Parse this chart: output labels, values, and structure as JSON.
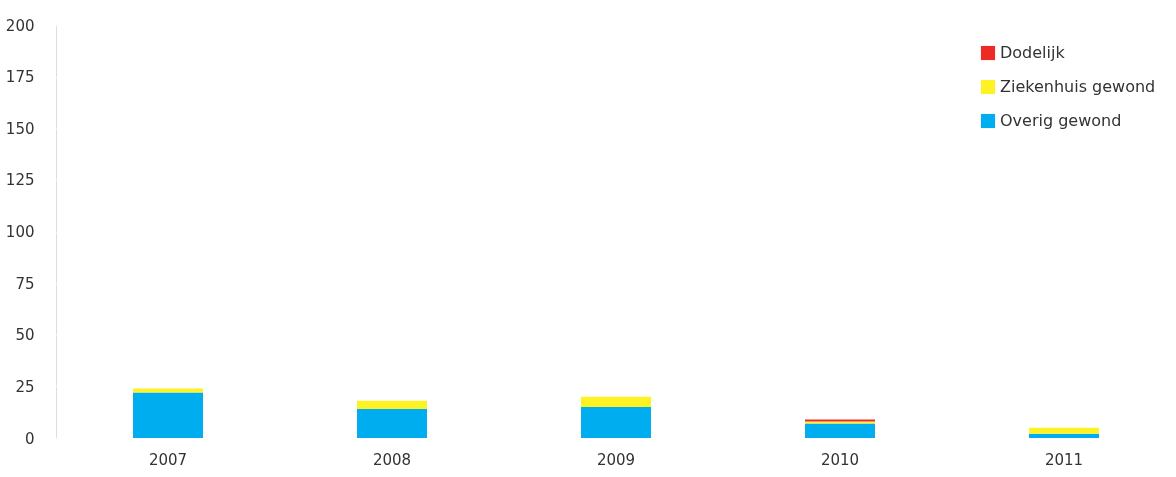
{
  "chart_data": {
    "type": "bar",
    "stacked": true,
    "categories": [
      "2007",
      "2008",
      "2009",
      "2010",
      "2011"
    ],
    "series": [
      {
        "name": "Overig gewond",
        "color": "#00aeef",
        "values": [
          22,
          14,
          15,
          7,
          2
        ]
      },
      {
        "name": "Ziekenhuis gewond",
        "color": "#fff224",
        "values": [
          2,
          4,
          5,
          1,
          3
        ]
      },
      {
        "name": "Dodelijk",
        "color": "#ee2a24",
        "values": [
          0,
          0,
          0,
          1,
          0
        ]
      }
    ],
    "ylim": [
      0,
      200
    ],
    "yticks": [
      0,
      25,
      50,
      75,
      100,
      125,
      150,
      175,
      200
    ],
    "grid": "y",
    "legend": "top right"
  }
}
